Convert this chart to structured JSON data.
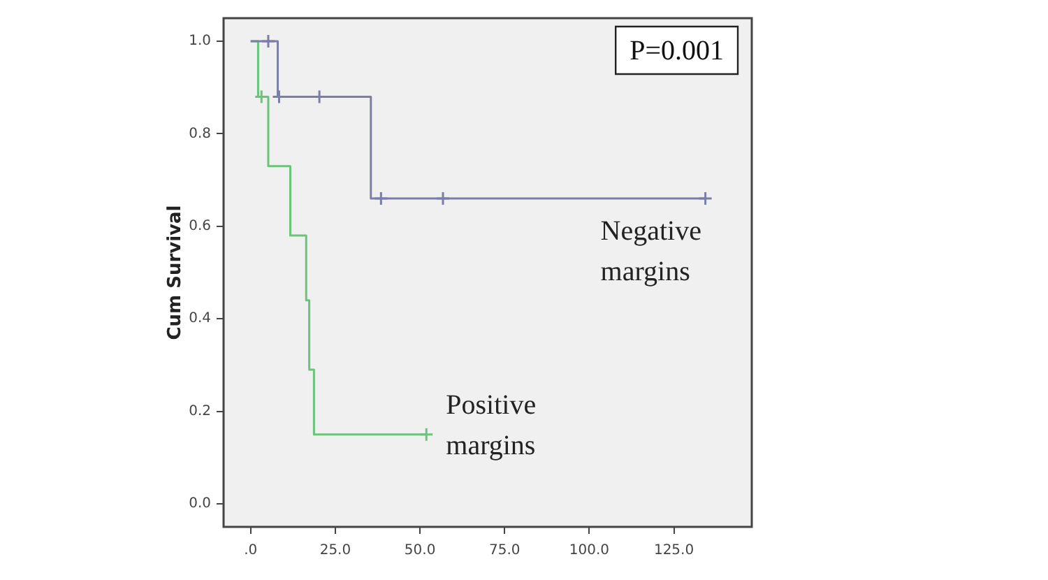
{
  "chart_data": {
    "type": "step",
    "ylabel": "Cum Survival",
    "annotations": [
      "P=0.001"
    ],
    "series": [
      {
        "name": "Negative margins",
        "color": "#7b7fa5",
        "x": [
          0,
          8.0,
          35.5,
          134.3
        ],
        "values": [
          1.0,
          0.88,
          0.66,
          0.66
        ]
      },
      {
        "name": "Positive margins",
        "color": "#6cc47c",
        "x": [
          0,
          2.2,
          5.2,
          11.7,
          16.4,
          17.3,
          18.7,
          51.9
        ],
        "values": [
          1.0,
          0.88,
          0.73,
          0.58,
          0.44,
          0.29,
          0.15,
          0.15
        ]
      },
      {
        "type": "scatter",
        "marker": "cross",
        "color": "#7b7fa5",
        "x": [
          5.2,
          8.4,
          20.3,
          38.5,
          56.8,
          134.3
        ],
        "values": [
          1.0,
          0.88,
          0.88,
          0.66,
          0.66,
          0.66
        ]
      },
      {
        "type": "scatter",
        "marker": "cross",
        "color": "#6cc47c",
        "x": [
          3.2,
          51.9
        ],
        "values": [
          0.88,
          0.15
        ]
      }
    ],
    "xlim": [
      -8,
      148
    ],
    "xticks": [
      {
        "value": 0,
        "label": ".0"
      },
      {
        "value": 25,
        "label": "25.0"
      },
      {
        "value": 50,
        "label": "50.0"
      },
      {
        "value": 75,
        "label": "75.0"
      },
      {
        "value": 100,
        "label": "100.0"
      },
      {
        "value": 125,
        "label": "125.0"
      }
    ],
    "ylim": [
      -0.05,
      1.05
    ],
    "yticks": [
      {
        "value": 0,
        "label": "0.0"
      },
      {
        "value": 0.2,
        "label": "0.2"
      },
      {
        "value": 0.4,
        "label": "0.4"
      },
      {
        "value": 0.6,
        "label": "0.6"
      },
      {
        "value": 0.8,
        "label": "0.8"
      },
      {
        "value": 1,
        "label": "1.0"
      }
    ],
    "grid": false,
    "legend": false
  }
}
